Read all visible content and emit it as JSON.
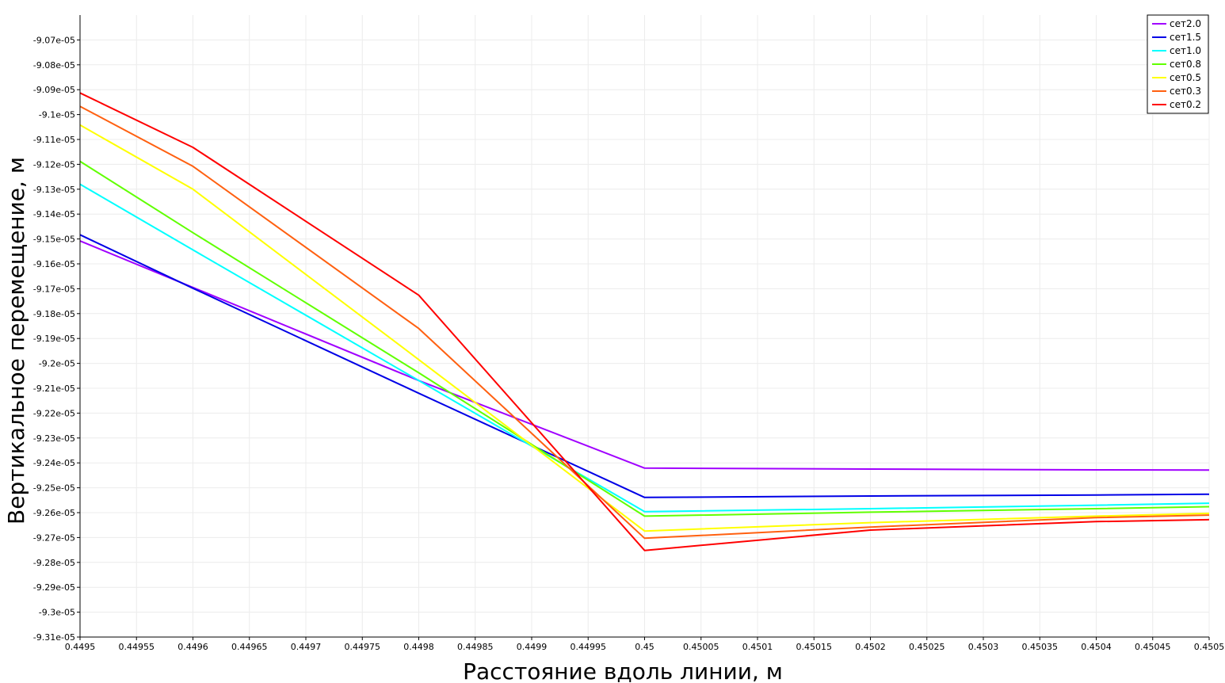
{
  "chart_data": {
    "type": "line",
    "xlabel": "Расстояние вдоль линии, м",
    "ylabel": "Вертикальное перемещение, м",
    "xlim": [
      0.4495,
      0.4505
    ],
    "ylim": [
      -9.31e-05,
      -9.06e-05
    ],
    "grid": true,
    "legend_position": "top-right",
    "x_ticks": [
      "0.4495",
      "0.44955",
      "0.4496",
      "0.44965",
      "0.4497",
      "0.44975",
      "0.4498",
      "0.44985",
      "0.4499",
      "0.44995",
      "0.45",
      "0.45005",
      "0.4501",
      "0.45015",
      "0.4502",
      "0.45025",
      "0.4503",
      "0.45035",
      "0.4504",
      "0.45045",
      "0.4505"
    ],
    "y_ticks": [
      "-9.07e-05",
      "-9.08e-05",
      "-9.09e-05",
      "-9.1e-05",
      "-9.11e-05",
      "-9.12e-05",
      "-9.13e-05",
      "-9.14e-05",
      "-9.15e-05",
      "-9.16e-05",
      "-9.17e-05",
      "-9.18e-05",
      "-9.19e-05",
      "-9.2e-05",
      "-9.21e-05",
      "-9.22e-05",
      "-9.23e-05",
      "-9.24e-05",
      "-9.25e-05",
      "-9.26e-05",
      "-9.27e-05",
      "-9.28e-05",
      "-9.29e-05",
      "-9.3e-05",
      "-9.31e-05"
    ],
    "series": [
      {
        "name": "сет2.0",
        "color": "#a000ff",
        "x": [
          0.4495,
          0.4496,
          0.4498,
          0.45,
          0.4502,
          0.4504,
          0.4505
        ],
        "y": [
          -9.1508e-05,
          -9.1695e-05,
          -9.2069e-05,
          -9.2421e-05,
          -9.2425e-05,
          -9.2428e-05,
          -9.2429e-05
        ]
      },
      {
        "name": "сет1.5",
        "color": "#0000e6",
        "x": [
          0.4495,
          0.4496,
          0.4498,
          0.45,
          0.4502,
          0.4504,
          0.4505
        ],
        "y": [
          -9.1483e-05,
          -9.1698e-05,
          -9.212e-05,
          -9.2539e-05,
          -9.2533e-05,
          -9.2529e-05,
          -9.2526e-05
        ]
      },
      {
        "name": "сет1.0",
        "color": "#00ffff",
        "x": [
          0.4495,
          0.4496,
          0.4498,
          0.45,
          0.4502,
          0.4504,
          0.4505
        ],
        "y": [
          -9.128e-05,
          -9.1544e-05,
          -9.2069e-05,
          -9.2596e-05,
          -9.2584e-05,
          -9.257e-05,
          -9.2562e-05
        ]
      },
      {
        "name": "сет0.8",
        "color": "#60ff00",
        "x": [
          0.4495,
          0.4496,
          0.4498,
          0.45,
          0.4502,
          0.4504,
          0.4505
        ],
        "y": [
          -9.1188e-05,
          -9.1475e-05,
          -9.2038e-05,
          -9.2614e-05,
          -9.2598e-05,
          -9.2584e-05,
          -9.2576e-05
        ]
      },
      {
        "name": "сет0.5",
        "color": "#ffff00",
        "x": [
          0.4495,
          0.4496,
          0.4498,
          0.45,
          0.4502,
          0.4504,
          0.4505
        ],
        "y": [
          -9.1042e-05,
          -9.13e-05,
          -9.1985e-05,
          -9.2674e-05,
          -9.264e-05,
          -9.2614e-05,
          -9.2603e-05
        ]
      },
      {
        "name": "сет0.3",
        "color": "#ff6010",
        "x": [
          0.4495,
          0.4496,
          0.4498,
          0.45,
          0.4502,
          0.4504,
          0.4505
        ],
        "y": [
          -9.0967e-05,
          -9.1208e-05,
          -9.186e-05,
          -9.2703e-05,
          -9.2658e-05,
          -9.262e-05,
          -9.261e-05
        ]
      },
      {
        "name": "сет0.2",
        "color": "#ff0000",
        "x": [
          0.4495,
          0.4496,
          0.4498,
          0.45,
          0.4502,
          0.4504,
          0.4505
        ],
        "y": [
          -9.0913e-05,
          -9.1132e-05,
          -9.1726e-05,
          -9.2752e-05,
          -9.267e-05,
          -9.2636e-05,
          -9.2628e-05
        ]
      }
    ]
  }
}
